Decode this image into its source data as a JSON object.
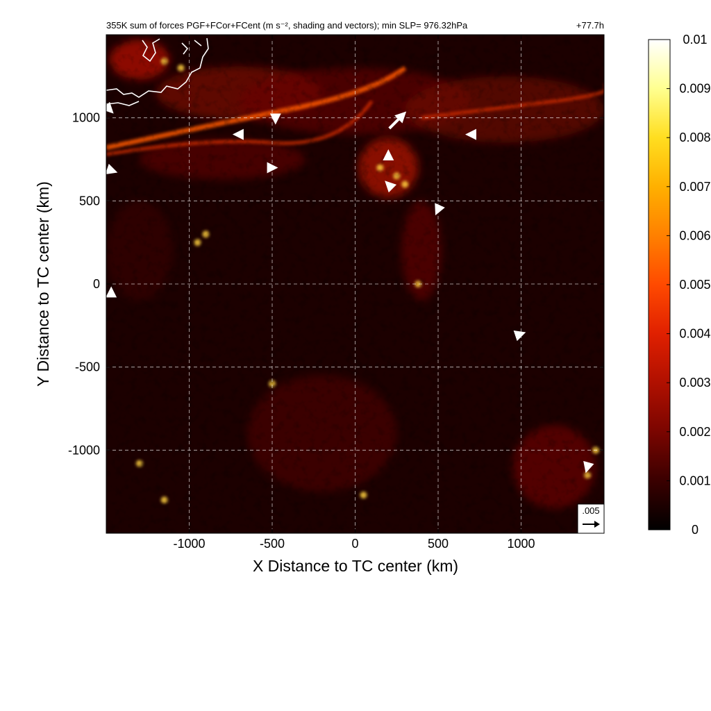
{
  "chart_data": {
    "type": "heatmap",
    "title": "355K sum of forces PGF+FCor+FCent (m s⁻², shading and vectors); min SLP= 976.32hPa",
    "time_label": "+77.7h",
    "xlabel": "X Distance to TC center (km)",
    "ylabel": "Y Distance to TC center (km)",
    "xlim": [
      -1500,
      1500
    ],
    "ylim": [
      -1500,
      1500
    ],
    "x_ticks": [
      -1000,
      -500,
      0,
      500,
      1000
    ],
    "x_tick_labels": [
      "-1000",
      "-500",
      "0",
      "500",
      "1000"
    ],
    "y_ticks": [
      -1000,
      -500,
      0,
      500,
      1000
    ],
    "y_tick_labels": [
      "-1000",
      "-500",
      "0",
      "500",
      "1000"
    ],
    "grid": true,
    "colorbar": {
      "min": 0,
      "max": 0.01,
      "ticks": [
        0,
        0.001,
        0.002,
        0.003,
        0.004,
        0.005,
        0.006,
        0.007,
        0.008,
        0.009,
        0.01
      ],
      "tick_labels": [
        "0",
        "0.001",
        "0.002",
        "0.003",
        "0.004",
        "0.005",
        "0.006",
        "0.007",
        "0.008",
        "0.009",
        "0.01"
      ],
      "colors": [
        "#000000",
        "#3a0000",
        "#7a0500",
        "#b01000",
        "#e02000",
        "#ff4a00",
        "#ff8000",
        "#ffb000",
        "#ffde20",
        "#ffff90",
        "#ffffff"
      ]
    },
    "reference_vector": {
      "label": ".005",
      "magnitude": 0.005
    },
    "strong_vectors": [
      {
        "x": 250,
        "y": 980,
        "u": 0.0042,
        "v": 0.0042
      },
      {
        "x": -480,
        "y": 1000,
        "u": 0.0,
        "v": -0.002
      },
      {
        "x": -700,
        "y": 900,
        "u": -0.0018,
        "v": 0.0
      },
      {
        "x": -500,
        "y": 700,
        "u": 0.0015,
        "v": 0.0
      },
      {
        "x": 700,
        "y": 900,
        "u": -0.0016,
        "v": 0.0
      },
      {
        "x": 500,
        "y": 450,
        "u": -0.0008,
        "v": -0.0018
      },
      {
        "x": -1480,
        "y": 1050,
        "u": 0.001,
        "v": -0.001
      },
      {
        "x": 1400,
        "y": -1100,
        "u": -0.0005,
        "v": -0.0018
      },
      {
        "x": 200,
        "y": 780,
        "u": 0.0,
        "v": 0.001
      },
      {
        "x": 200,
        "y": 600,
        "u": -0.0007,
        "v": 0.0007
      },
      {
        "x": 1000,
        "y": -300,
        "u": 0.0009,
        "v": 0.0003
      },
      {
        "x": -1470,
        "y": -50,
        "u": 0.0,
        "v": 0.0015
      },
      {
        "x": -1460,
        "y": 680,
        "u": 0.0009,
        "v": -0.0003
      }
    ],
    "annotations": [
      "coastline (white) in upper-left corner"
    ]
  }
}
